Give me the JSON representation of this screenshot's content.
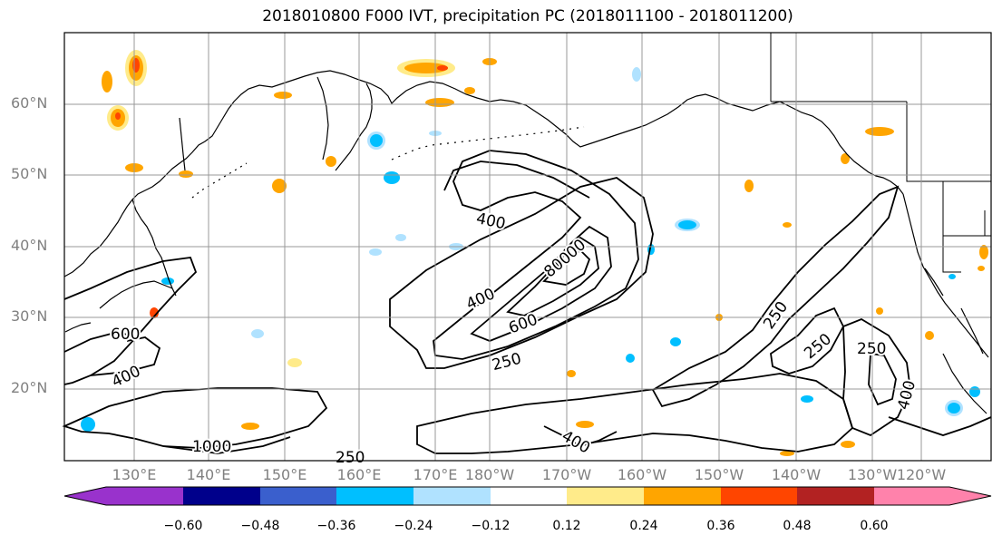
{
  "title": "2018010800 F000 IVT, precipitation PC (2018011100 - 2018011200)",
  "lat_labels": [
    "60°N",
    "50°N",
    "40°N",
    "30°N",
    "20°N"
  ],
  "lon_labels": [
    "130°E",
    "140°E",
    "150°E",
    "160°E",
    "170°E",
    "180°W",
    "170°W",
    "160°W",
    "150°W",
    "140°W",
    "130°W",
    "120°W"
  ],
  "contour_labels": [
    "400",
    "1000",
    "800",
    "400",
    "600",
    "250",
    "600",
    "400",
    "1000",
    "400",
    "250",
    "250",
    "250",
    "250",
    "400"
  ],
  "colorbar": {
    "ticks": [
      "−0.60",
      "−0.48",
      "−0.36",
      "−0.24",
      "−0.12",
      "0.12",
      "0.24",
      "0.36",
      "0.48",
      "0.60"
    ],
    "colors": [
      "#9932cc",
      "#00008b",
      "#3a5fcd",
      "#00bfff",
      "#b0e2ff",
      "#ffffff",
      "#ffeb8a",
      "#ffa500",
      "#ff4500",
      "#b22222",
      "#ff82ab"
    ]
  },
  "colors": {
    "contour": "#000000",
    "grid": "#999999",
    "label": "#808080"
  }
}
